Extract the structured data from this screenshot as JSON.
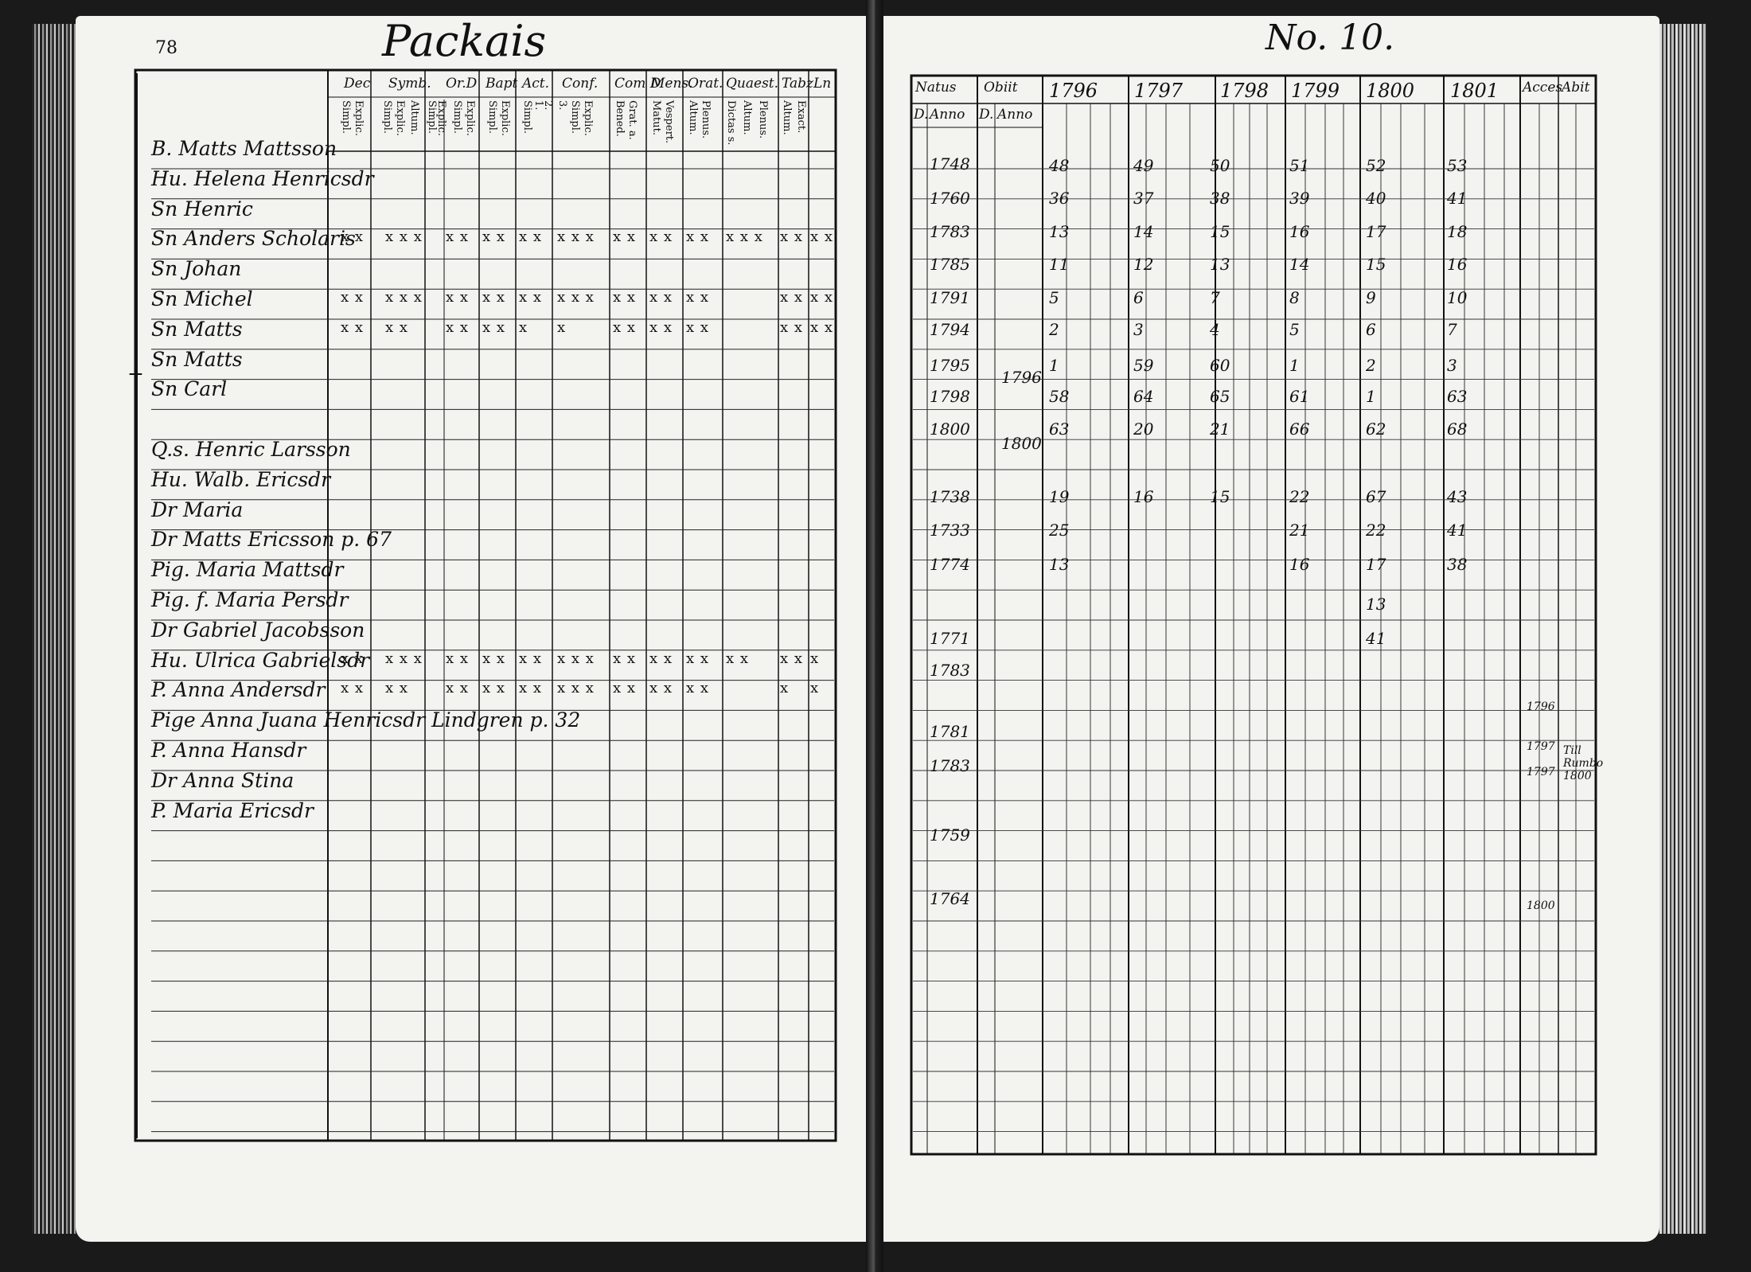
{
  "left_page": {
    "page_number": "78",
    "title": "Packais",
    "column_headers": [
      "Dec",
      "Symb.",
      "Or.D",
      "Bapt",
      "Act.",
      "Conf.",
      "Com D",
      "Mens.",
      "Orat.",
      "Quaest.",
      "Tabz",
      "Ln"
    ],
    "sub_headers": [
      "Simpl.",
      "Explic.",
      "Simpl.",
      "Explic.",
      "Altum.",
      "Simpl.",
      "Explic.",
      "Simpl.",
      "Explic.",
      "Simpl.",
      "Explic.",
      "Simpl.",
      "1.",
      "2.",
      "3.",
      "Simpl.",
      "Explic.",
      "Bened.",
      "Grat. a.",
      "Matut.",
      "Vespert.",
      "Altum.",
      "Plenus.",
      "Dictas s.",
      "Altum.",
      "Plenus.",
      "Altum.",
      "Exact."
    ],
    "names": [
      "B. Matts Mattsson",
      "Hu. Helena Henricsdr",
      "Sn Henric",
      "Sn Anders Scholaris",
      "Sn Johan",
      "Sn Michel",
      "Sn Matts",
      "Sn Matts",
      "Sn Carl",
      "Q.s. Henric Larsson",
      "Hu. Walb. Ericsdr",
      "Dr Maria",
      "Dr Matts Ericsson p. 67",
      "Pig. Maria Mattsdr",
      "Pig. f. Maria Persdr",
      "Dr Gabriel Jacobsson",
      "Hu. Ulrica Gabrielsdr",
      "P. Anna Andersdr",
      "Pige Anna Juana Henricsdr Lindgren p. 32",
      "P. Anna Hansdr",
      "Dr Anna Stina",
      "P. Maria Ericsdr"
    ],
    "margin_cross": "+",
    "mark_rows": [
      {
        "row": 3,
        "marks": [
          "x x",
          "x x x",
          "x x",
          "x x",
          "x x",
          "x x x",
          "x x",
          "x x",
          "x x",
          "x x x",
          "x x",
          "x x"
        ]
      },
      {
        "row": 5,
        "marks": [
          "x x",
          "x x x",
          "x x",
          "x x",
          "x x",
          "x x x",
          "x x",
          "x x",
          "x x",
          "",
          "x x",
          "x x"
        ]
      },
      {
        "row": 6,
        "marks": [
          "x x",
          "x x",
          "x x",
          "x x",
          "x",
          "x",
          "x x",
          "x x",
          "x x",
          "",
          "x x",
          "x x"
        ]
      },
      {
        "row": 17,
        "marks": [
          "x x",
          "x x x",
          "x x",
          "x x",
          "x x",
          "x x x",
          "x x",
          "x x",
          "x x",
          "x x",
          "x x",
          "x"
        ]
      },
      {
        "row": 18,
        "marks": [
          "x x",
          "x x",
          "x x",
          "x x",
          "x x",
          "x x x",
          "x x",
          "x x",
          "x x",
          "",
          "x",
          "x"
        ]
      }
    ]
  },
  "right_page": {
    "title": "No. 10.",
    "column_headers": [
      "Natus",
      "Obiit",
      "1796",
      "1797",
      "1798",
      "1799",
      "1800",
      "1801",
      "Acces",
      "Abit"
    ],
    "sub_headers": [
      "D.",
      "Anno",
      "D.",
      "Anno"
    ],
    "birth_years": [
      "1748",
      "1760",
      "1783",
      "1785",
      "1791",
      "1794",
      "1795",
      "1798",
      "1800",
      "1738",
      "1733",
      "1774",
      "1771",
      "1783",
      "1781",
      "1783",
      "1759",
      "1764"
    ],
    "death_years": [
      "1796",
      "1800"
    ],
    "ages_1796": [
      "48",
      "36",
      "13",
      "11",
      "5",
      "2",
      "1",
      "58",
      "63",
      "19",
      "25",
      "13"
    ],
    "ages_1797": [
      "49",
      "37",
      "14",
      "12",
      "6",
      "3",
      "59",
      "64",
      "20",
      "16"
    ],
    "ages_1798": [
      "50",
      "38",
      "15",
      "13",
      "7",
      "4",
      "60",
      "65",
      "21",
      "15"
    ],
    "ages_1799": [
      "51",
      "39",
      "16",
      "14",
      "8",
      "5",
      "1",
      "61",
      "66",
      "22",
      "21",
      "16"
    ],
    "ages_1800": [
      "52",
      "40",
      "17",
      "15",
      "9",
      "6",
      "2",
      "1",
      "62",
      "67",
      "22",
      "17",
      "13",
      "41"
    ],
    "ages_1801": [
      "53",
      "41",
      "18",
      "16",
      "10",
      "7",
      "3",
      "63",
      "68",
      "43",
      "41",
      "38"
    ],
    "acces_notes": [
      "1796",
      "1797",
      "1797",
      "1800"
    ],
    "abit_note": "Till Rumbo 1800"
  }
}
